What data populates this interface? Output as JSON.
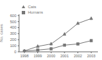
{
  "chart_data": {
    "type": "line",
    "y_label": "No. cases",
    "x": [
      1998,
      1999,
      2000,
      2001,
      2002,
      2003
    ],
    "series": [
      {
        "name": "Cats",
        "color": "#777777",
        "marker": "triangle",
        "values": [
          15,
          90,
          130,
          290,
          470,
          550
        ]
      },
      {
        "name": "Humans",
        "color": "#777777",
        "marker": "square",
        "values": [
          10,
          30,
          50,
          110,
          130,
          185
        ]
      }
    ],
    "xlim": [
      1997.6,
      2003.5
    ],
    "xticks": [
      1998,
      1999,
      2000,
      2001,
      2002,
      2003
    ],
    "ylim": [
      0,
      620
    ],
    "yticks": [
      0,
      100,
      200,
      300,
      400,
      500,
      600
    ],
    "grid": false,
    "legend": "upper left"
  }
}
